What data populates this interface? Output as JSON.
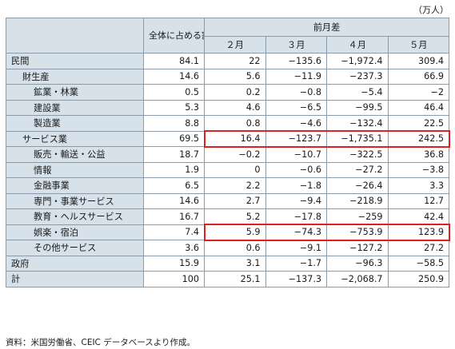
{
  "unit": "（万人）",
  "header": {
    "group": "前月差",
    "share": "全体に占める割合",
    "months": [
      "２月",
      "３月",
      "４月",
      "５月"
    ]
  },
  "rows": [
    {
      "label": "民間",
      "level": 0,
      "share": "84.1",
      "values": [
        "22",
        "−135.6",
        "−1,972.4",
        "309.4"
      ]
    },
    {
      "label": "財生産",
      "level": 1,
      "share": "14.6",
      "values": [
        "5.6",
        "−11.9",
        "−237.3",
        "66.9"
      ]
    },
    {
      "label": "鉱業・林業",
      "level": 2,
      "share": "0.5",
      "values": [
        "0.2",
        "−0.8",
        "−5.4",
        "−2"
      ]
    },
    {
      "label": "建設業",
      "level": 2,
      "share": "5.3",
      "values": [
        "4.6",
        "−6.5",
        "−99.5",
        "46.4"
      ]
    },
    {
      "label": "製造業",
      "level": 2,
      "share": "8.8",
      "values": [
        "0.8",
        "−4.6",
        "−132.4",
        "22.5"
      ]
    },
    {
      "label": "サービス業",
      "level": 1,
      "share": "69.5",
      "values": [
        "16.4",
        "−123.7",
        "−1,735.1",
        "242.5"
      ]
    },
    {
      "label": "販売・輸送・公益",
      "level": 2,
      "share": "18.7",
      "values": [
        "−0.2",
        "−10.7",
        "−322.5",
        "36.8"
      ]
    },
    {
      "label": "情報",
      "level": 2,
      "share": "1.9",
      "values": [
        "0",
        "−0.6",
        "−27.2",
        "−3.8"
      ]
    },
    {
      "label": "金融事業",
      "level": 2,
      "share": "6.5",
      "values": [
        "2.2",
        "−1.8",
        "−26.4",
        "3.3"
      ]
    },
    {
      "label": "専門・事業サービス",
      "level": 2,
      "share": "14.6",
      "values": [
        "2.7",
        "−9.4",
        "−218.9",
        "12.7"
      ]
    },
    {
      "label": "教育・ヘルスサービス",
      "level": 2,
      "share": "16.7",
      "values": [
        "5.2",
        "−17.8",
        "−259",
        "42.4"
      ]
    },
    {
      "label": "娯楽・宿泊",
      "level": 2,
      "share": "7.4",
      "values": [
        "5.9",
        "−74.3",
        "−753.9",
        "123.9"
      ]
    },
    {
      "label": "その他サービス",
      "level": 2,
      "share": "3.6",
      "values": [
        "0.6",
        "−9.1",
        "−127.2",
        "27.2"
      ]
    },
    {
      "label": "政府",
      "level": 0,
      "share": "15.9",
      "values": [
        "3.1",
        "−1.7",
        "−96.3",
        "−58.5"
      ]
    },
    {
      "label": "計",
      "level": 0,
      "share": "100",
      "values": [
        "25.1",
        "−137.3",
        "−2,068.7",
        "250.9"
      ]
    }
  ],
  "highlight_rows": [
    5,
    11
  ],
  "highlight_color": "#e01f1f",
  "header_bg": "#d7e1ea",
  "note": "資料：米国労働省、CEIC データベースより作成。"
}
